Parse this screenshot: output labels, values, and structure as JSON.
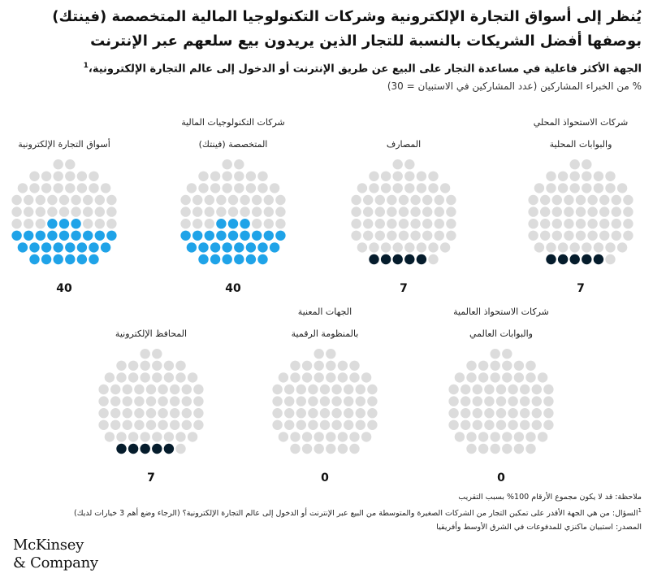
{
  "title": "يُنظر إلى أسواق التجارة الإلكترونية وشركات التكنولوجيا المالية المتخصصة (فينتك) بوصفها أفضل الشريكات بالنسبة للتجار الذين يريدون بيع سلعهم عبر الإنترنت",
  "subtitle": "الجهة الأكثر فاعلية في مساعدة التجار على البيع عن طريق الإنترنت أو الدخول إلى عالم التجارة الإلكترونية،",
  "subtitle_footnote": "1",
  "unit_label": "% من الخبراء المشاركين (عدد المشاركين في الاستبيان = 30)",
  "colors": {
    "highlight_blue": "#1fa3e8",
    "highlight_navy": "#051c2c",
    "empty_dot": "#dcdcdc"
  },
  "chart_data": {
    "type": "dot-matrix",
    "unit": "%",
    "categories": [
      {
        "label_lines": [
          "أسواق التجارة الإلكترونية"
        ],
        "value": 40,
        "value_label": "40",
        "color": "#1fa3e8"
      },
      {
        "label_lines": [
          "شركات التكنولوجيات المالية",
          "المتخصصة (فينتك)"
        ],
        "value": 40,
        "value_label": "40",
        "color": "#1fa3e8"
      },
      {
        "label_lines": [
          "المصارف"
        ],
        "value": 7,
        "value_label": "7",
        "color": "#051c2c"
      },
      {
        "label_lines": [
          "شركات الاستحواذ المحلي",
          "والبوابات المحلية"
        ],
        "value": 7,
        "value_label": "7",
        "color": "#051c2c"
      },
      {
        "label_lines": [
          "المحافظ الإلكترونية"
        ],
        "value": 7,
        "value_label": "7",
        "color": "#051c2c"
      },
      {
        "label_lines": [
          "الجهات المعنية",
          "بالمنظومة الرقمية"
        ],
        "value": 0,
        "value_label": "0",
        "color": "#051c2c"
      },
      {
        "label_lines": [
          "شركات الاستحواذ العالمية",
          "والبوابات العالمي"
        ],
        "value": 0,
        "value_label": "0",
        "color": "#051c2c"
      }
    ]
  },
  "footer": {
    "note": "ملاحظة: قد لا يكون مجموع الأرقام 100% بسبب التقريب",
    "question_marker": "1",
    "question": "السؤال: من هي الجهة الأقدر على تمكين التجار من الشركات الصغيرة والمتوسطة من البيع عبر الإنترنت أو الدخول إلى عالم التجارة الإلكترونية؟ (الرجاء وضع أهم 3 خيارات لديك)",
    "source": "المصدر: استبيان ماكنزي للمدفوعات في الشرق الأوسط وأفريقيا"
  },
  "logo": {
    "line1": "McKinsey",
    "line2": "& Company"
  }
}
